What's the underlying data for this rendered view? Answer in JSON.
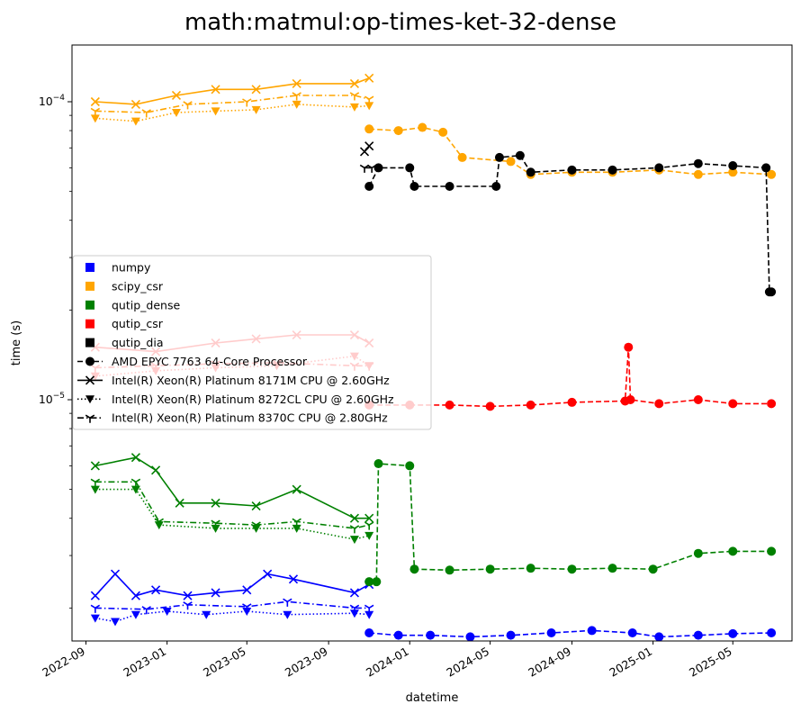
{
  "chart_data": {
    "type": "line",
    "title": "math:matmul:op-times-ket-32-dense",
    "xlabel": "datetime",
    "ylabel": "time (s)",
    "y_scale": "log",
    "xlim": [
      "2022-08-11",
      "2025-07-29"
    ],
    "ylim": [
      1.55e-06,
      0.000155
    ],
    "x_ticks": [
      "2022-09",
      "2023-01",
      "2023-05",
      "2023-09",
      "2024-01",
      "2024-05",
      "2024-09",
      "2025-01",
      "2025-05"
    ],
    "y_ticks": [
      {
        "value": 1e-05,
        "label": "10",
        "exp": "−5"
      },
      {
        "value": 0.0001,
        "label": "10",
        "exp": "−4"
      }
    ],
    "grid": false,
    "legend_position": "center-left",
    "legend": {
      "libraries": [
        {
          "name": "numpy",
          "color": "#0000ff"
        },
        {
          "name": "scipy_csr",
          "color": "#ffa500"
        },
        {
          "name": "qutip_dense",
          "color": "#008000"
        },
        {
          "name": "qutip_csr",
          "color": "#ff0000"
        },
        {
          "name": "qutip_dia",
          "color": "#000000"
        }
      ],
      "cpus": [
        {
          "name": "AMD EPYC 7763 64-Core Processor",
          "marker": "circle",
          "dash": "dashed"
        },
        {
          "name": "Intel(R) Xeon(R) Platinum 8171M CPU @ 2.60GHz",
          "marker": "x",
          "dash": "solid"
        },
        {
          "name": "Intel(R) Xeon(R) Platinum 8272CL CPU @ 2.60GHz",
          "marker": "triangle-down",
          "dash": "dotted"
        },
        {
          "name": "Intel(R) Xeon(R) Platinum 8370C CPU @ 2.80GHz",
          "marker": "tri-down",
          "dash": "dashdot"
        }
      ]
    },
    "series": [
      {
        "library": "numpy",
        "cpu": "AMD EPYC 7763 64-Core Processor",
        "color": "#0000ff",
        "points": [
          [
            "2023-11-01",
            1.65e-06
          ],
          [
            "2023-12-15",
            1.62e-06
          ],
          [
            "2024-02-01",
            1.62e-06
          ],
          [
            "2024-04-01",
            1.6e-06
          ],
          [
            "2024-06-01",
            1.62e-06
          ],
          [
            "2024-08-01",
            1.65e-06
          ],
          [
            "2024-10-01",
            1.68e-06
          ],
          [
            "2024-12-01",
            1.65e-06
          ],
          [
            "2025-01-10",
            1.6e-06
          ],
          [
            "2025-03-10",
            1.62e-06
          ],
          [
            "2025-05-01",
            1.64e-06
          ],
          [
            "2025-06-28",
            1.65e-06
          ]
        ]
      },
      {
        "library": "numpy",
        "cpu": "Intel(R) Xeon(R) Platinum 8171M CPU @ 2.60GHz",
        "color": "#0000ff",
        "points": [
          [
            "2022-09-15",
            2.2e-06
          ],
          [
            "2022-10-15",
            2.6e-06
          ],
          [
            "2022-11-15",
            2.2e-06
          ],
          [
            "2022-12-15",
            2.3e-06
          ],
          [
            "2023-02-01",
            2.2e-06
          ],
          [
            "2023-03-15",
            2.25e-06
          ],
          [
            "2023-05-01",
            2.3e-06
          ],
          [
            "2023-06-01",
            2.6e-06
          ],
          [
            "2023-07-10",
            2.5e-06
          ],
          [
            "2023-10-10",
            2.25e-06
          ],
          [
            "2023-11-01",
            2.4e-06
          ]
        ]
      },
      {
        "library": "numpy",
        "cpu": "Intel(R) Xeon(R) Platinum 8272CL CPU @ 2.60GHz",
        "color": "#0000ff",
        "points": [
          [
            "2022-09-15",
            1.85e-06
          ],
          [
            "2022-10-15",
            1.8e-06
          ],
          [
            "2022-11-15",
            1.9e-06
          ],
          [
            "2023-01-01",
            1.95e-06
          ],
          [
            "2023-03-01",
            1.9e-06
          ],
          [
            "2023-05-01",
            1.95e-06
          ],
          [
            "2023-07-01",
            1.9e-06
          ],
          [
            "2023-10-10",
            1.92e-06
          ],
          [
            "2023-11-01",
            1.9e-06
          ]
        ]
      },
      {
        "library": "numpy",
        "cpu": "Intel(R) Xeon(R) Platinum 8370C CPU @ 2.80GHz",
        "color": "#0000ff",
        "points": [
          [
            "2022-09-15",
            2e-06
          ],
          [
            "2022-12-01",
            1.98e-06
          ],
          [
            "2023-02-01",
            2.05e-06
          ],
          [
            "2023-05-01",
            2.02e-06
          ],
          [
            "2023-07-01",
            2.1e-06
          ],
          [
            "2023-10-10",
            2e-06
          ],
          [
            "2023-11-01",
            2e-06
          ]
        ]
      },
      {
        "library": "scipy_csr",
        "cpu": "AMD EPYC 7763 64-Core Processor",
        "color": "#ffa500",
        "points": [
          [
            "2023-11-01",
            8.1e-05
          ],
          [
            "2023-12-15",
            8e-05
          ],
          [
            "2024-01-20",
            8.2e-05
          ],
          [
            "2024-02-20",
            7.9e-05
          ],
          [
            "2024-03-20",
            6.5e-05
          ],
          [
            "2024-06-01",
            6.3e-05
          ],
          [
            "2024-07-01",
            5.7e-05
          ],
          [
            "2024-09-01",
            5.8e-05
          ],
          [
            "2024-11-01",
            5.8e-05
          ],
          [
            "2025-01-10",
            5.9e-05
          ],
          [
            "2025-03-10",
            5.7e-05
          ],
          [
            "2025-05-01",
            5.8e-05
          ],
          [
            "2025-06-28",
            5.7e-05
          ]
        ]
      },
      {
        "library": "scipy_csr",
        "cpu": "Intel(R) Xeon(R) Platinum 8171M CPU @ 2.60GHz",
        "color": "#ffa500",
        "points": [
          [
            "2022-09-15",
            0.0001
          ],
          [
            "2022-11-15",
            9.8e-05
          ],
          [
            "2023-01-15",
            0.000105
          ],
          [
            "2023-03-15",
            0.00011
          ],
          [
            "2023-05-15",
            0.00011
          ],
          [
            "2023-07-15",
            0.000115
          ],
          [
            "2023-10-10",
            0.000115
          ],
          [
            "2023-11-01",
            0.00012
          ]
        ]
      },
      {
        "library": "scipy_csr",
        "cpu": "Intel(R) Xeon(R) Platinum 8272CL CPU @ 2.60GHz",
        "color": "#ffa500",
        "points": [
          [
            "2022-09-15",
            8.8e-05
          ],
          [
            "2022-11-15",
            8.6e-05
          ],
          [
            "2023-01-15",
            9.2e-05
          ],
          [
            "2023-03-15",
            9.3e-05
          ],
          [
            "2023-05-15",
            9.4e-05
          ],
          [
            "2023-07-15",
            9.8e-05
          ],
          [
            "2023-10-10",
            9.6e-05
          ],
          [
            "2023-11-01",
            9.7e-05
          ]
        ]
      },
      {
        "library": "scipy_csr",
        "cpu": "Intel(R) Xeon(R) Platinum 8370C CPU @ 2.80GHz",
        "color": "#ffa500",
        "points": [
          [
            "2022-09-15",
            9.3e-05
          ],
          [
            "2022-12-01",
            9.2e-05
          ],
          [
            "2023-02-01",
            9.8e-05
          ],
          [
            "2023-05-01",
            0.0001
          ],
          [
            "2023-07-15",
            0.000105
          ],
          [
            "2023-10-10",
            0.000105
          ],
          [
            "2023-11-01",
            0.000102
          ]
        ]
      },
      {
        "library": "qutip_dense",
        "cpu": "AMD EPYC 7763 64-Core Processor",
        "color": "#008000",
        "points": [
          [
            "2023-11-01",
            2.45e-06
          ],
          [
            "2023-11-12",
            2.45e-06
          ],
          [
            "2023-11-15",
            6.1e-06
          ],
          [
            "2024-01-01",
            6e-06
          ],
          [
            "2024-01-08",
            2.7e-06
          ],
          [
            "2024-03-01",
            2.68e-06
          ],
          [
            "2024-05-01",
            2.7e-06
          ],
          [
            "2024-07-01",
            2.72e-06
          ],
          [
            "2024-09-01",
            2.7e-06
          ],
          [
            "2024-11-01",
            2.72e-06
          ],
          [
            "2025-01-01",
            2.7e-06
          ],
          [
            "2025-03-10",
            3.05e-06
          ],
          [
            "2025-05-01",
            3.1e-06
          ],
          [
            "2025-06-28",
            3.1e-06
          ]
        ]
      },
      {
        "library": "qutip_dense",
        "cpu": "Intel(R) Xeon(R) Platinum 8171M CPU @ 2.60GHz",
        "color": "#008000",
        "points": [
          [
            "2022-09-15",
            6e-06
          ],
          [
            "2022-11-15",
            6.4e-06
          ],
          [
            "2022-12-15",
            5.8e-06
          ],
          [
            "2023-01-20",
            4.5e-06
          ],
          [
            "2023-03-15",
            4.5e-06
          ],
          [
            "2023-05-15",
            4.4e-06
          ],
          [
            "2023-07-15",
            5e-06
          ],
          [
            "2023-10-10",
            4e-06
          ],
          [
            "2023-11-01",
            4e-06
          ]
        ]
      },
      {
        "library": "qutip_dense",
        "cpu": "Intel(R) Xeon(R) Platinum 8272CL CPU @ 2.60GHz",
        "color": "#008000",
        "points": [
          [
            "2022-09-15",
            5e-06
          ],
          [
            "2022-11-15",
            5e-06
          ],
          [
            "2022-12-20",
            3.8e-06
          ],
          [
            "2023-03-15",
            3.7e-06
          ],
          [
            "2023-05-15",
            3.7e-06
          ],
          [
            "2023-07-15",
            3.7e-06
          ],
          [
            "2023-10-10",
            3.4e-06
          ],
          [
            "2023-11-01",
            3.5e-06
          ]
        ]
      },
      {
        "library": "qutip_dense",
        "cpu": "Intel(R) Xeon(R) Platinum 8370C CPU @ 2.80GHz",
        "color": "#008000",
        "points": [
          [
            "2022-09-15",
            5.3e-06
          ],
          [
            "2022-11-15",
            5.3e-06
          ],
          [
            "2022-12-20",
            3.9e-06
          ],
          [
            "2023-03-15",
            3.85e-06
          ],
          [
            "2023-05-15",
            3.8e-06
          ],
          [
            "2023-07-15",
            3.9e-06
          ],
          [
            "2023-10-10",
            3.7e-06
          ],
          [
            "2023-11-01",
            3.8e-06
          ]
        ]
      },
      {
        "library": "qutip_csr",
        "cpu": "AMD EPYC 7763 64-Core Processor",
        "color": "#ff0000",
        "points": [
          [
            "2023-11-01",
            9.6e-06
          ],
          [
            "2024-01-01",
            9.6e-06
          ],
          [
            "2024-03-01",
            9.6e-06
          ],
          [
            "2024-05-01",
            9.5e-06
          ],
          [
            "2024-07-01",
            9.6e-06
          ],
          [
            "2024-09-01",
            9.8e-06
          ],
          [
            "2024-11-20",
            9.9e-06
          ],
          [
            "2024-11-25",
            1.5e-05
          ],
          [
            "2024-11-28",
            1e-05
          ],
          [
            "2025-01-10",
            9.7e-06
          ],
          [
            "2025-03-10",
            1e-05
          ],
          [
            "2025-05-01",
            9.7e-06
          ],
          [
            "2025-06-28",
            9.7e-06
          ]
        ]
      },
      {
        "library": "qutip_csr",
        "cpu": "Intel(R) Xeon(R) Platinum 8171M CPU @ 2.60GHz",
        "color": "#ff0000",
        "points": [
          [
            "2022-09-15",
            1.5e-05
          ],
          [
            "2022-12-15",
            1.45e-05
          ],
          [
            "2023-03-15",
            1.55e-05
          ],
          [
            "2023-05-15",
            1.6e-05
          ],
          [
            "2023-07-15",
            1.65e-05
          ],
          [
            "2023-10-10",
            1.65e-05
          ],
          [
            "2023-11-01",
            1.55e-05
          ]
        ]
      },
      {
        "library": "qutip_csr",
        "cpu": "Intel(R) Xeon(R) Platinum 8272CL CPU @ 2.60GHz",
        "color": "#ff0000",
        "points": [
          [
            "2022-09-15",
            1.2e-05
          ],
          [
            "2022-12-15",
            1.25e-05
          ],
          [
            "2023-03-15",
            1.28e-05
          ],
          [
            "2023-06-15",
            1.3e-05
          ],
          [
            "2023-10-10",
            1.4e-05
          ],
          [
            "2023-11-01",
            1.3e-05
          ]
        ]
      },
      {
        "library": "qutip_csr",
        "cpu": "Intel(R) Xeon(R) Platinum 8370C CPU @ 2.80GHz",
        "color": "#ff0000",
        "points": [
          [
            "2022-09-15",
            1.28e-05
          ],
          [
            "2022-12-15",
            1.3e-05
          ],
          [
            "2023-03-15",
            1.32e-05
          ],
          [
            "2023-06-15",
            1.33e-05
          ],
          [
            "2023-10-10",
            1.3e-05
          ],
          [
            "2023-11-01",
            1.3e-05
          ]
        ]
      },
      {
        "library": "qutip_dia",
        "cpu": "AMD EPYC 7763 64-Core Processor",
        "color": "#000000",
        "points": [
          [
            "2023-11-01",
            5.2e-05
          ],
          [
            "2023-11-15",
            6e-05
          ],
          [
            "2024-01-01",
            6e-05
          ],
          [
            "2024-01-08",
            5.2e-05
          ],
          [
            "2024-03-01",
            5.2e-05
          ],
          [
            "2024-05-10",
            5.2e-05
          ],
          [
            "2024-05-15",
            6.5e-05
          ],
          [
            "2024-06-15",
            6.6e-05
          ],
          [
            "2024-07-01",
            5.8e-05
          ],
          [
            "2024-09-01",
            5.9e-05
          ],
          [
            "2024-11-01",
            5.9e-05
          ],
          [
            "2025-01-10",
            6e-05
          ],
          [
            "2025-03-10",
            6.2e-05
          ],
          [
            "2025-05-01",
            6.1e-05
          ],
          [
            "2025-06-20",
            6e-05
          ],
          [
            "2025-06-25",
            2.3e-05
          ],
          [
            "2025-06-28",
            2.3e-05
          ]
        ]
      },
      {
        "library": "qutip_dia",
        "cpu": "Intel(R) Xeon(R) Platinum 8171M CPU @ 2.60GHz",
        "color": "#000000",
        "points": [
          [
            "2023-10-25",
            6.8e-05
          ],
          [
            "2023-11-01",
            7.1e-05
          ]
        ]
      },
      {
        "library": "qutip_dia",
        "cpu": "Intel(R) Xeon(R) Platinum 8370C CPU @ 2.80GHz",
        "color": "#000000",
        "points": [
          [
            "2023-10-25",
            6e-05
          ],
          [
            "2023-11-05",
            6e-05
          ]
        ]
      }
    ]
  }
}
